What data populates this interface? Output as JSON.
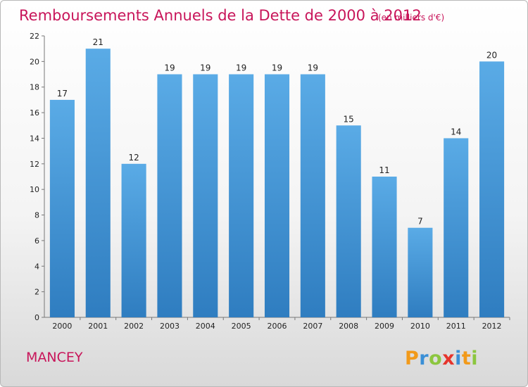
{
  "chart_data": {
    "type": "bar",
    "title": "Remboursements Annuels de la Dette de 2000 à 2012",
    "unit_note": "(en milliers d'€)",
    "categories": [
      "2000",
      "2001",
      "2002",
      "2003",
      "2004",
      "2005",
      "2006",
      "2007",
      "2008",
      "2009",
      "2010",
      "2011",
      "2012"
    ],
    "values": [
      17,
      21,
      12,
      19,
      19,
      19,
      19,
      19,
      15,
      11,
      7,
      14,
      20
    ],
    "ylim": [
      0,
      22
    ],
    "yticks": [
      0,
      2,
      4,
      6,
      8,
      10,
      12,
      14,
      16,
      18,
      20,
      22
    ],
    "grid": false,
    "bar_color_top": "#5aabe6",
    "bar_color_bottom": "#2f7dc0"
  },
  "footer": {
    "location": "MANCEY",
    "logo_text": "Proxiti"
  },
  "colors": {
    "accent": "#c8155a"
  }
}
